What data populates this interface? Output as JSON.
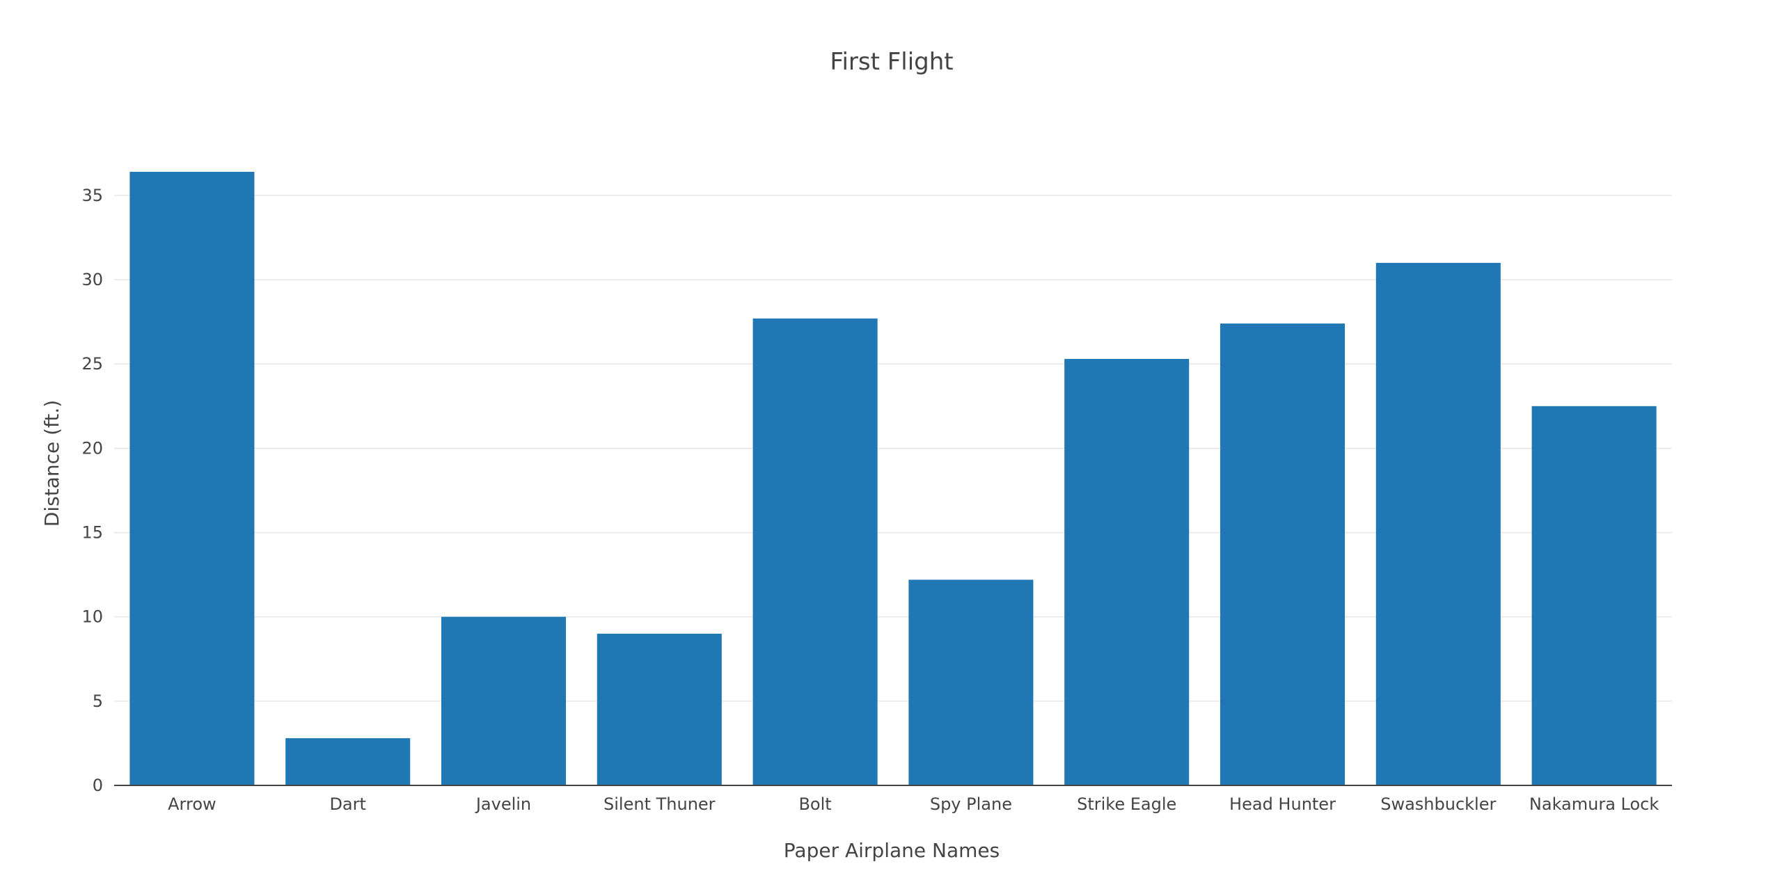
{
  "chart_data": {
    "type": "bar",
    "title": "First Flight",
    "xlabel": "Paper Airplane Names",
    "ylabel": "Distance (ft.)",
    "categories": [
      "Arrow",
      "Dart",
      "Javelin",
      "Silent Thuner",
      "Bolt",
      "Spy Plane",
      "Strike Eagle",
      "Head Hunter",
      "Swashbuckler",
      "Nakamura Lock"
    ],
    "values": [
      36.4,
      2.8,
      10,
      9,
      27.7,
      12.2,
      25.3,
      27.4,
      31,
      22.5
    ],
    "ylim": [
      0,
      36.4
    ],
    "yticks": [
      0,
      5,
      10,
      15,
      20,
      25,
      30,
      35
    ],
    "grid": true,
    "colors": {
      "bar": "#1f77b4",
      "text": "#444444",
      "grid": "#e6e6e6"
    }
  }
}
